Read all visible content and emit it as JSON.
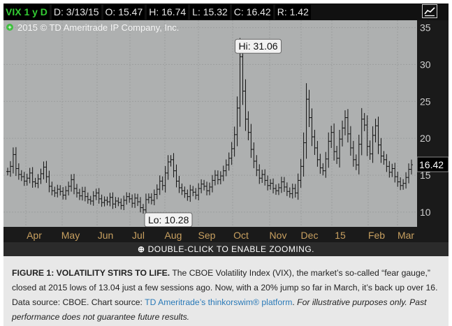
{
  "header": {
    "symbol": "VIX 1 y D",
    "date": "D: 3/13/15",
    "open": "O: 15.47",
    "high": "H: 16.74",
    "low": "L: 15.32",
    "close": "C: 16.42",
    "range": "R: 1.42"
  },
  "watermark": "2015 © TD Ameritrade IP Company, Inc.",
  "annotations": {
    "hi": "Hi: 31.06",
    "lo": "Lo: 10.28",
    "last": "16.42"
  },
  "zoom_bar": {
    "icon": "zoom-in-icon",
    "label": "DOUBLE-CLICK TO ENABLE ZOOMING."
  },
  "caption": {
    "title": "FIGURE 1: VOLATILITY STIRS TO LIFE.",
    "body": " The CBOE Volatility Index (VIX), the market’s so-called “fear gauge,” closed at 2015 lows of 13.04 just a few sessions ago. Now, with a 20% jump so far in March, it’s back up over 16. Data source: CBOE. Chart source: ",
    "link": "TD Ameritrade’s thinkorswim® platform",
    "post_link": ". ",
    "disclaimer": "For illustrative purposes only. Past performance does not guarantee future results."
  },
  "colors": {
    "plot_bg": "#aeb0b0",
    "bar": "#111111",
    "accent_green": "#33cc33",
    "link": "#2a7ab8"
  },
  "chart_data": {
    "type": "bar",
    "title": "VIX 1 y D",
    "ylim": [
      8,
      36
    ],
    "yticks": [
      10,
      15,
      20,
      25,
      30,
      35
    ],
    "xlabels": [
      "Apr",
      "May",
      "Jun",
      "Jul",
      "Aug",
      "Sep",
      "Oct",
      "Nov",
      "Dec",
      "15",
      "Feb",
      "Mar"
    ],
    "grid": true,
    "hi": 31.06,
    "lo": 10.28,
    "last": 16.42,
    "series": [
      {
        "values": [
          15.5,
          16.2,
          17.8,
          15.9,
          15.1,
          14.8,
          14.2,
          14.6,
          15.3,
          14.1,
          13.9,
          14.5,
          15.2,
          16.1,
          14.8,
          13.5,
          12.9,
          12.6,
          13.1,
          12.8,
          12.3,
          12.9,
          13.5,
          14.4,
          13.2,
          12.6,
          12.2,
          12.8,
          12.1,
          11.7,
          11.5,
          12.2,
          12.6,
          11.8,
          11.3,
          11.6,
          11.4,
          12.0,
          11.1,
          11.5,
          11.3,
          10.9,
          11.6,
          12.1,
          11.8,
          11.2,
          11.9,
          11.4,
          10.6,
          10.3,
          11.7,
          12.0,
          11.6,
          12.4,
          13.1,
          14.2,
          13.6,
          15.3,
          16.8,
          17.1,
          15.6,
          14.2,
          13.3,
          12.9,
          12.5,
          12.1,
          13.0,
          12.7,
          12.3,
          13.2,
          13.8,
          13.5,
          12.9,
          13.4,
          14.3,
          15.0,
          14.4,
          14.9,
          15.6,
          16.4,
          17.3,
          18.6,
          20.5,
          24.1,
          31.06,
          26.4,
          22.6,
          20.8,
          18.5,
          16.9,
          15.7,
          14.6,
          15.1,
          14.3,
          13.6,
          13.9,
          13.2,
          12.9,
          13.3,
          14.1,
          13.4,
          12.8,
          12.5,
          13.2,
          12.6,
          14.3,
          16.2,
          19.4,
          25.3,
          22.8,
          20.2,
          18.7,
          17.1,
          16.0,
          15.6,
          17.2,
          19.6,
          20.8,
          18.2,
          17.3,
          19.9,
          21.4,
          22.8,
          20.6,
          18.7,
          17.1,
          16.4,
          19.2,
          22.6,
          21.8,
          18.9,
          17.9,
          20.4,
          21.7,
          19.1,
          17.6,
          17.1,
          16.2,
          15.4,
          15.9,
          14.8,
          14.1,
          13.6,
          13.9,
          14.7,
          15.8,
          16.42
        ]
      }
    ]
  }
}
